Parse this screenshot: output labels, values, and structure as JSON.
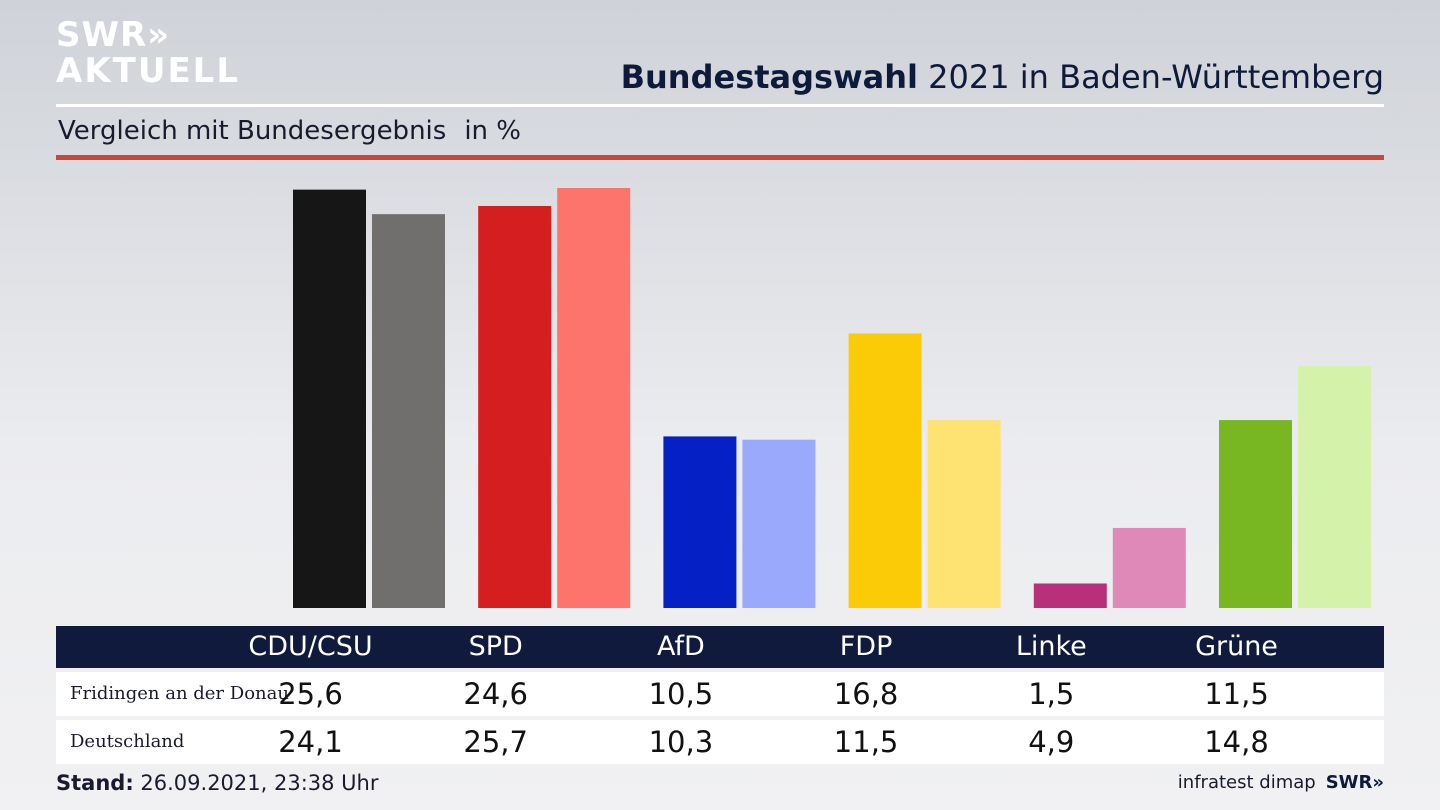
{
  "header": {
    "logo_line1": "SWR»",
    "logo_line2": "AKTUELL",
    "title_bold": "Bundestagswahl",
    "title_rest": " 2021 in Baden-Württemberg",
    "subtitle": "Vergleich mit Bundesergebnis",
    "unit": "in %"
  },
  "chart_data": {
    "type": "bar",
    "categories": [
      "CDU/CSU",
      "SPD",
      "AfD",
      "FDP",
      "Linke",
      "Grüne"
    ],
    "series": [
      {
        "name": "Fridingen an der Donau",
        "values": [
          25.6,
          24.6,
          10.5,
          16.8,
          1.5,
          11.5
        ],
        "display": [
          "25,6",
          "24,6",
          "10,5",
          "16,8",
          "1,5",
          "11,5"
        ]
      },
      {
        "name": "Deutschland",
        "values": [
          24.1,
          25.7,
          10.3,
          11.5,
          4.9,
          14.8
        ],
        "display": [
          "24,1",
          "25,7",
          "10,3",
          "11,5",
          "4,9",
          "14,8"
        ]
      }
    ],
    "colors": {
      "local": [
        "#161616",
        "#d41e20",
        "#0520c4",
        "#fccb08",
        "#b8307a",
        "#79b722"
      ],
      "national": [
        "#706f6d",
        "#fd746c",
        "#9aa9fc",
        "#fee272",
        "#df89b8",
        "#d4f2a9"
      ]
    },
    "ylabel": "in %",
    "ylim": [
      0,
      25.7
    ]
  },
  "footer": {
    "stand_label": "Stand:",
    "stand_value": " 26.09.2021, 23:38 Uhr",
    "source": "infratest dimap",
    "brand": "SWR»"
  }
}
